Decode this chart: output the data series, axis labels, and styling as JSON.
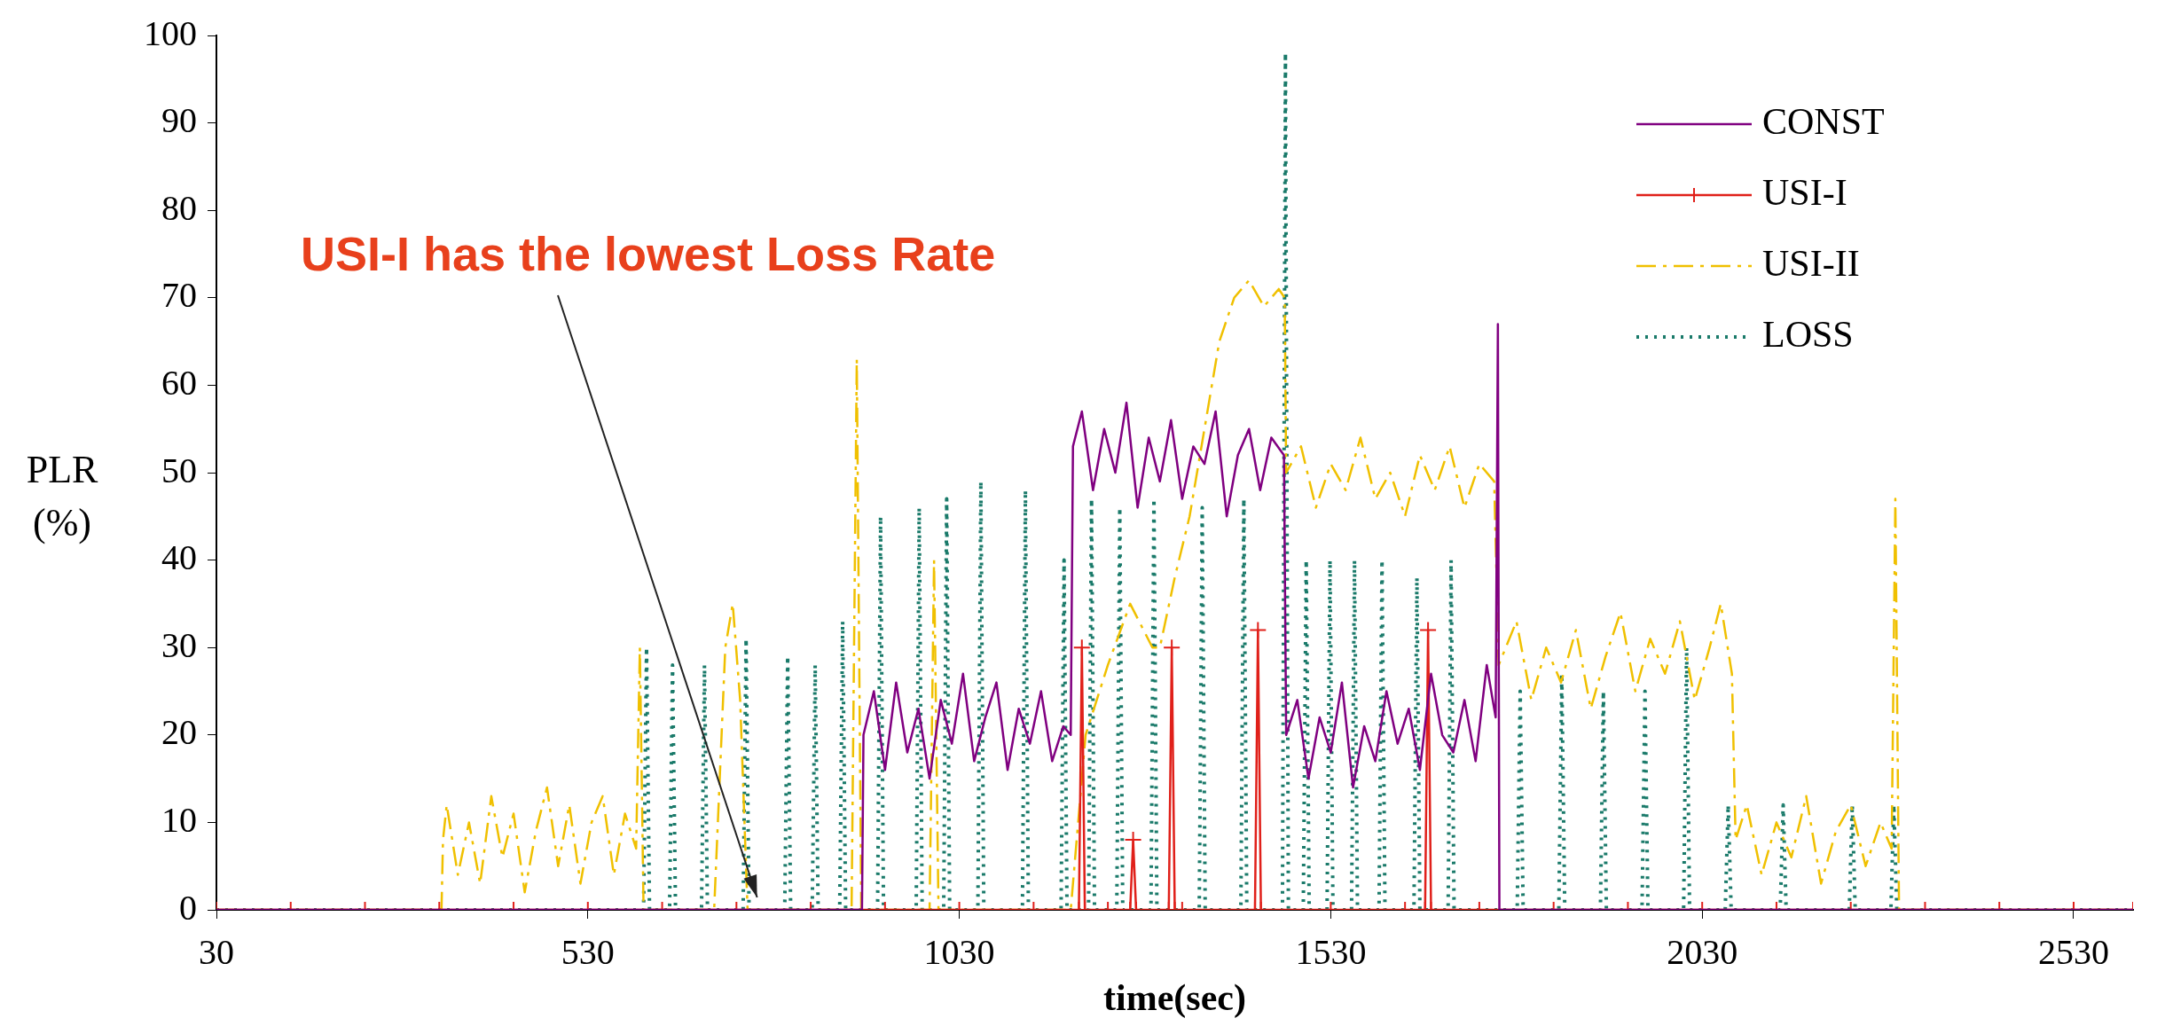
{
  "chart_data": {
    "type": "line",
    "xlabel": "time(sec)",
    "ylabel": "PLR (%)",
    "xlim": [
      30,
      2610
    ],
    "xticks": [
      30,
      530,
      1030,
      1530,
      2030,
      2530
    ],
    "ylim": [
      0,
      100
    ],
    "yticks": [
      0,
      10,
      20,
      30,
      40,
      50,
      60,
      70,
      80,
      90,
      100
    ],
    "legend": "top right",
    "annotations": [
      "USI-I has the lowest Loss Rate"
    ],
    "series": [
      {
        "name": "CONST",
        "color": "#800080",
        "line_style": "solid",
        "x": [
          30,
          899,
          901,
          915,
          930,
          945,
          960,
          975,
          990,
          1005,
          1020,
          1035,
          1050,
          1065,
          1080,
          1095,
          1110,
          1125,
          1140,
          1155,
          1170,
          1180,
          1183,
          1195,
          1210,
          1225,
          1240,
          1255,
          1270,
          1285,
          1300,
          1315,
          1330,
          1345,
          1360,
          1375,
          1390,
          1405,
          1420,
          1435,
          1450,
          1467,
          1470,
          1485,
          1500,
          1515,
          1530,
          1545,
          1560,
          1575,
          1590,
          1605,
          1620,
          1635,
          1650,
          1665,
          1680,
          1695,
          1710,
          1725,
          1740,
          1752,
          1755,
          1757,
          2610
        ],
        "values": [
          0,
          0,
          20,
          25,
          16,
          26,
          18,
          23,
          15,
          24,
          19,
          27,
          17,
          22,
          26,
          16,
          23,
          19,
          25,
          17,
          21,
          20,
          53,
          57,
          48,
          55,
          50,
          58,
          46,
          54,
          49,
          56,
          47,
          53,
          51,
          57,
          45,
          52,
          55,
          48,
          54,
          52,
          20,
          24,
          15,
          22,
          18,
          26,
          14,
          21,
          17,
          25,
          19,
          23,
          16,
          27,
          20,
          18,
          24,
          17,
          28,
          22,
          67,
          0,
          0
        ]
      },
      {
        "name": "USI-I",
        "color": "#e0201a",
        "line_style": "solid",
        "marker": "cross",
        "x": [
          30,
          130,
          230,
          330,
          430,
          530,
          630,
          730,
          830,
          930,
          1030,
          1130,
          1191,
          1195,
          1199,
          1230,
          1260,
          1264,
          1268,
          1312,
          1316,
          1320,
          1330,
          1428,
          1432,
          1436,
          1530,
          1630,
          1657,
          1661,
          1665,
          1730,
          1830,
          1930,
          2030,
          2130,
          2230,
          2330,
          2430,
          2530,
          2610
        ],
        "values": [
          0,
          0,
          0,
          0,
          0,
          0,
          0,
          0,
          0,
          0,
          0,
          0,
          0,
          30,
          0,
          0,
          0,
          8,
          0,
          0,
          30,
          0,
          0,
          0,
          32,
          0,
          0,
          0,
          0,
          32,
          0,
          0,
          0,
          0,
          0,
          0,
          0,
          0,
          0,
          0,
          0
        ]
      },
      {
        "name": "USI-II",
        "color": "#f0c000",
        "line_style": "dashed",
        "x": [
          30,
          333,
          335,
          340,
          355,
          370,
          385,
          400,
          415,
          430,
          445,
          460,
          475,
          490,
          505,
          520,
          535,
          550,
          565,
          580,
          595,
          600,
          605,
          700,
          715,
          725,
          735,
          745,
          885,
          892,
          898,
          990,
          996,
          1002,
          1180,
          1200,
          1230,
          1260,
          1290,
          1300,
          1320,
          1340,
          1360,
          1380,
          1400,
          1420,
          1440,
          1460,
          1468,
          1470,
          1490,
          1510,
          1530,
          1550,
          1570,
          1590,
          1610,
          1630,
          1650,
          1670,
          1690,
          1710,
          1730,
          1750,
          1756,
          1780,
          1800,
          1820,
          1840,
          1860,
          1880,
          1900,
          1920,
          1940,
          1960,
          1980,
          2000,
          2020,
          2040,
          2055,
          2070,
          2075,
          2090,
          2110,
          2130,
          2150,
          2170,
          2190,
          2210,
          2230,
          2250,
          2270,
          2285,
          2290,
          2295,
          2610
        ],
        "values": [
          0,
          0,
          8,
          12,
          4,
          10,
          3,
          13,
          6,
          11,
          2,
          9,
          14,
          5,
          12,
          3,
          10,
          13,
          4,
          11,
          7,
          30,
          0,
          0,
          30,
          35,
          24,
          0,
          0,
          63,
          0,
          0,
          40,
          0,
          0,
          20,
          28,
          35,
          30,
          30,
          38,
          45,
          55,
          65,
          70,
          72,
          69,
          71,
          70,
          50,
          53,
          46,
          51,
          48,
          54,
          47,
          50,
          45,
          52,
          48,
          53,
          46,
          51,
          49,
          28,
          33,
          24,
          30,
          26,
          32,
          23,
          29,
          34,
          25,
          31,
          27,
          33,
          24,
          30,
          35,
          27,
          8,
          12,
          4,
          10,
          6,
          13,
          3,
          9,
          12,
          5,
          10,
          7,
          47,
          0,
          0
        ]
      },
      {
        "name": "LOSS",
        "color": "#1a7a6a",
        "line_style": "dotted",
        "x": [
          30,
          605,
          609,
          613,
          640,
          644,
          648,
          683,
          687,
          691,
          739,
          743,
          747,
          795,
          799,
          803,
          832,
          836,
          840,
          869,
          873,
          877,
          920,
          924,
          928,
          972,
          976,
          980,
          1009,
          1013,
          1017,
          1055,
          1059,
          1063,
          1115,
          1119,
          1123,
          1167,
          1171,
          1175,
          1204,
          1208,
          1212,
          1242,
          1246,
          1250,
          1288,
          1292,
          1296,
          1353,
          1357,
          1361,
          1409,
          1413,
          1417,
          1465,
          1469,
          1473,
          1493,
          1497,
          1501,
          1525,
          1529,
          1533,
          1558,
          1562,
          1566,
          1595,
          1599,
          1603,
          1642,
          1646,
          1650,
          1688,
          1692,
          1696,
          1781,
          1785,
          1789,
          1837,
          1841,
          1845,
          1893,
          1897,
          1901,
          1949,
          1953,
          1957,
          2005,
          2009,
          2013,
          2061,
          2065,
          2069,
          2135,
          2139,
          2143,
          2228,
          2232,
          2236,
          2284,
          2288,
          2292,
          2610
        ],
        "values": [
          0,
          0,
          30,
          0,
          0,
          28,
          0,
          0,
          28,
          0,
          0,
          31,
          0,
          0,
          29,
          0,
          0,
          28,
          0,
          0,
          33,
          0,
          0,
          45,
          0,
          0,
          46,
          0,
          0,
          47,
          0,
          0,
          49,
          0,
          0,
          48,
          0,
          0,
          40,
          0,
          0,
          47,
          0,
          0,
          46,
          0,
          0,
          47,
          0,
          0,
          46,
          0,
          0,
          47,
          0,
          0,
          98,
          0,
          0,
          40,
          0,
          0,
          40,
          0,
          0,
          40,
          0,
          0,
          40,
          0,
          0,
          38,
          0,
          0,
          40,
          0,
          0,
          25,
          0,
          0,
          27,
          0,
          0,
          25,
          0,
          0,
          25,
          0,
          0,
          30,
          0,
          0,
          12,
          0,
          0,
          12,
          0,
          0,
          12,
          0,
          0,
          12,
          0,
          0
        ]
      }
    ]
  }
}
